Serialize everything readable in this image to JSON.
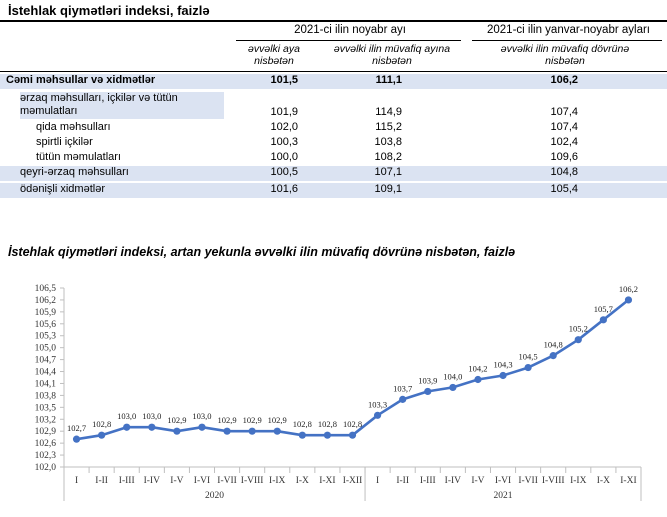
{
  "table": {
    "title": "İstehlak qiymətləri indeksi, faizlə",
    "header_col1": "2021-ci ilin noyabr ayı",
    "header_col2": "2021-ci ilin yanvar-noyabr ayları",
    "sub_a": "əvvəlki aya nisbətən",
    "sub_b": "əvvəlki ilin müvafiq ayına nisbətən",
    "sub_c": "əvvəlki ilin müvafiq dövrünə nisbətən",
    "rows": [
      {
        "label": "Cəmi məhsullar və xidmətlər",
        "a": "101,5",
        "b": "111,1",
        "c": "106,2"
      },
      {
        "label": "ərzaq məhsulları, içkilər və tütün məmulatları",
        "a": "101,9",
        "b": "114,9",
        "c": "107,4"
      },
      {
        "label": "qida məhsulları",
        "a": "102,0",
        "b": "115,2",
        "c": "107,4"
      },
      {
        "label": "spirtli içkilər",
        "a": "100,3",
        "b": "103,8",
        "c": "102,4"
      },
      {
        "label": "tütün məmulatları",
        "a": "100,0",
        "b": "108,2",
        "c": "109,6"
      },
      {
        "label": "qeyri-ərzaq məhsulları",
        "a": "100,5",
        "b": "107,1",
        "c": "104,8"
      },
      {
        "label": "ödənişli xidmətlər",
        "a": "101,6",
        "b": "109,1",
        "c": "105,4"
      }
    ]
  },
  "chart_title": "İstehlak qiymətləri indeksi, artan yekunla əvvəlki ilin müvafiq dövrünə nisbətən, faizlə",
  "chart_data": {
    "type": "line",
    "title": "İstehlak qiymətləri indeksi, artan yekunla əvvəlki ilin müvafiq dövrünə nisbətən, faizlə",
    "xlabel": "",
    "ylabel": "",
    "ylim": [
      102.0,
      106.5
    ],
    "ytick_step": 0.1,
    "yticks_labels": [
      "102,0",
      "102,3",
      "102,6",
      "102,9",
      "103,2",
      "103,5",
      "103,8",
      "104,1",
      "104,4",
      "104,7",
      "105,0",
      "105,3",
      "105,6",
      "105,9",
      "106,2",
      "106,5"
    ],
    "yticks_values": [
      102.0,
      102.3,
      102.6,
      102.9,
      103.2,
      103.5,
      103.8,
      104.1,
      104.4,
      104.7,
      105.0,
      105.3,
      105.6,
      105.9,
      106.2,
      106.5
    ],
    "groups": [
      {
        "name": "2020",
        "categories": [
          "I",
          "I-II",
          "I-III",
          "I-IV",
          "I-V",
          "I-VI",
          "I-VII",
          "I-VIII",
          "I-IX",
          "I-X",
          "I-XI",
          "I-XII"
        ]
      },
      {
        "name": "2021",
        "categories": [
          "I",
          "I-II",
          "I-III",
          "I-IV",
          "I-V",
          "I-VI",
          "I-VII",
          "I-VIII",
          "I-IX",
          "I-X",
          "I-XI"
        ]
      }
    ],
    "values": [
      102.7,
      102.8,
      103.0,
      103.0,
      102.9,
      103.0,
      102.9,
      102.9,
      102.9,
      102.8,
      102.8,
      102.8,
      103.3,
      103.7,
      103.9,
      104.0,
      104.2,
      104.3,
      104.5,
      104.8,
      105.2,
      105.7,
      106.2
    ],
    "value_labels": [
      "102,7",
      "102,8",
      "103,0",
      "103,0",
      "102,9",
      "103,0",
      "102,9",
      "102,9",
      "102,9",
      "102,8",
      "102,8",
      "102,8",
      "103,3",
      "103,7",
      "103,9",
      "104,0",
      "104,2",
      "104,3",
      "104,5",
      "104,8",
      "105,2",
      "105,7",
      "106,2"
    ],
    "color": "#4472c4",
    "grid": false,
    "legend": "none"
  }
}
